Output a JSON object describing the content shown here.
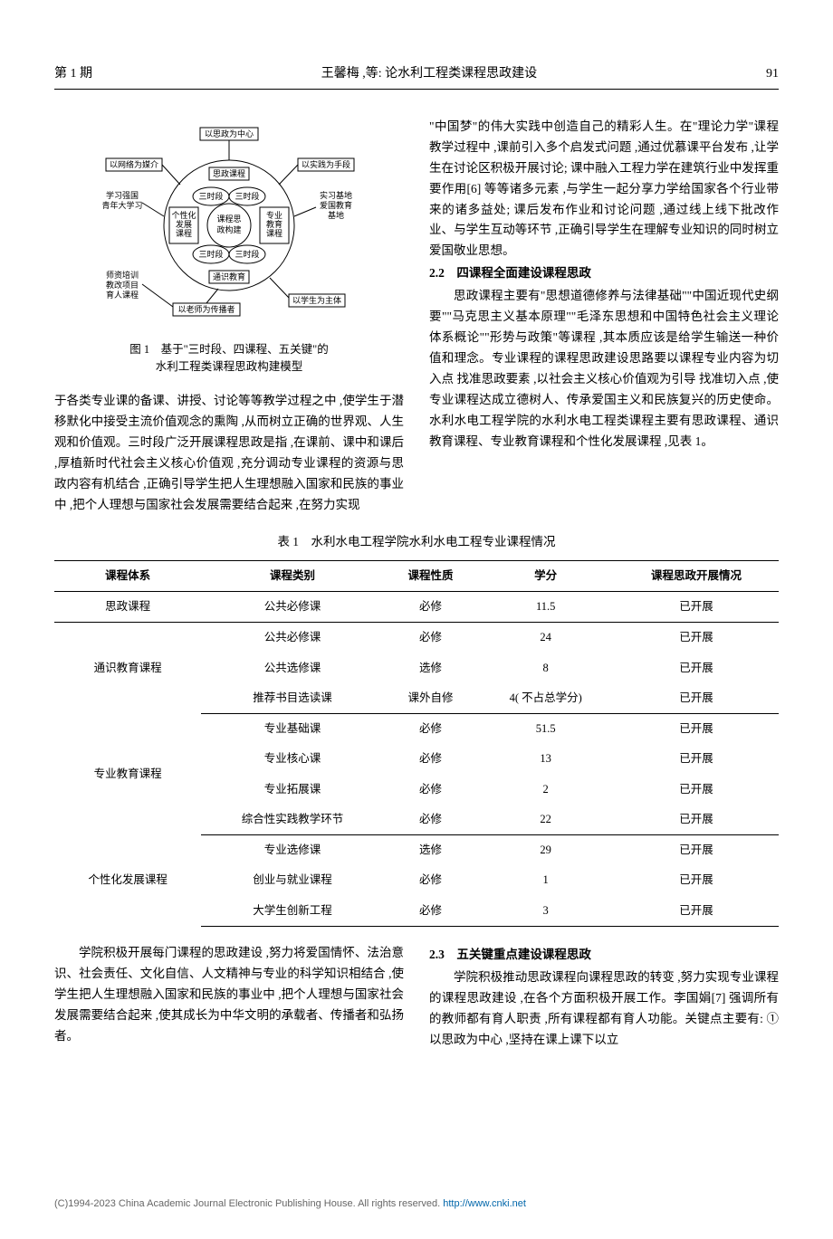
{
  "header": {
    "issue": "第 1 期",
    "title": "王馨梅 ,等: 论水利工程类课程思政建设",
    "page": "91"
  },
  "figure": {
    "center_label": "课程思\n政构建",
    "inner_nodes_top": [
      "三时段",
      "三时段"
    ],
    "inner_nodes_bottom": [
      "三时段",
      "三时段"
    ],
    "mid_left": "个性化\n发展\n课程",
    "mid_right": "专业\n教育\n课程",
    "mid_top": "思政课程",
    "mid_bottom": "通识教育",
    "outer_top": "以思政为中心",
    "outer_right_top": "以实践为手段",
    "outer_right_bottom": "以学生为主体",
    "outer_bottom": "以老师为传播者",
    "outer_left_bottom": "",
    "outer_left_top": "以网络为媒介",
    "side_left_top": "学习强国\n青年大学习",
    "side_left_bottom": "师资培训\n教改项目\n育人课程",
    "side_right_top": "实习基地\n爱国教育\n基地",
    "side_right_bottom": "",
    "caption_line1": "图 1　基于\"三时段、四课程、五关键\"的",
    "caption_line2": "水利工程类课程思政构建模型"
  },
  "col1_p1": "于各类专业课的备课、讲授、讨论等等教学过程之中 ,使学生于潜移默化中接受主流价值观念的熏陶 ,从而树立正确的世界观、人生观和价值观。三时段广泛开展课程思政是指 ,在课前、课中和课后 ,厚植新时代社会主义核心价值观 ,充分调动专业课程的资源与思政内容有机结合 ,正确引导学生把人生理想融入国家和民族的事业中 ,把个人理想与国家社会发展需要结合起来 ,在努力实现",
  "col2_p1": "\"中国梦\"的伟大实践中创造自己的精彩人生。在\"理论力学\"课程教学过程中 ,课前引入多个启发式问题 ,通过优慕课平台发布 ,让学生在讨论区积极开展讨论; 课中融入工程力学在建筑行业中发挥重要作用[6] 等等诸多元素 ,与学生一起分享力学给国家各个行业带来的诸多益处; 课后发布作业和讨论问题 ,通过线上线下批改作业、与学生互动等环节 ,正确引导学生在理解专业知识的同时树立爱国敬业思想。",
  "section_22_title": "2.2　四课程全面建设课程思政",
  "col2_p2": "思政课程主要有\"思想道德修养与法律基础\"\"中国近现代史纲要\"\"马克思主义基本原理\"\"毛泽东思想和中国特色社会主义理论体系概论\"\"形势与政策\"等课程 ,其本质应该是给学生输送一种价值和理念。专业课程的课程思政建设思路要以课程专业内容为切入点 找准思政要素 ,以社会主义核心价值观为引导 找准切入点 ,使专业课程达成立德树人、传承爱国主义和民族复兴的历史使命。水利水电工程学院的水利水电工程类课程主要有思政课程、通识教育课程、专业教育课程和个性化发展课程 ,见表 1。",
  "table": {
    "caption": "表 1　水利水电工程学院水利水电工程专业课程情况",
    "columns": [
      "课程体系",
      "课程类别",
      "课程性质",
      "学分",
      "课程思政开展情况"
    ],
    "groups": [
      {
        "system": "思政课程",
        "rowspan": 1,
        "rows": [
          {
            "type": "公共必修课",
            "nature": "必修",
            "credit": "11.5",
            "status": "已开展"
          }
        ]
      },
      {
        "system": "通识教育课程",
        "rowspan": 3,
        "rows": [
          {
            "type": "公共必修课",
            "nature": "必修",
            "credit": "24",
            "status": "已开展"
          },
          {
            "type": "公共选修课",
            "nature": "选修",
            "credit": "8",
            "status": "已开展"
          },
          {
            "type": "推荐书目选读课",
            "nature": "课外自修",
            "credit": "4( 不占总学分)",
            "status": "已开展"
          }
        ]
      },
      {
        "system": "专业教育课程",
        "rowspan": 4,
        "rows": [
          {
            "type": "专业基础课",
            "nature": "必修",
            "credit": "51.5",
            "status": "已开展"
          },
          {
            "type": "专业核心课",
            "nature": "必修",
            "credit": "13",
            "status": "已开展"
          },
          {
            "type": "专业拓展课",
            "nature": "必修",
            "credit": "2",
            "status": "已开展"
          },
          {
            "type": "综合性实践教学环节",
            "nature": "必修",
            "credit": "22",
            "status": "已开展"
          }
        ]
      },
      {
        "system": "个性化发展课程",
        "rowspan": 3,
        "rows": [
          {
            "type": "专业选修课",
            "nature": "选修",
            "credit": "29",
            "status": "已开展"
          },
          {
            "type": "创业与就业课程",
            "nature": "必修",
            "credit": "1",
            "status": "已开展"
          },
          {
            "type": "大学生创新工程",
            "nature": "必修",
            "credit": "3",
            "status": "已开展"
          }
        ]
      }
    ]
  },
  "bottom_col1": "学院积极开展每门课程的思政建设 ,努力将爱国情怀、法治意识、社会责任、文化自信、人文精神与专业的科学知识相结合 ,使学生把人生理想融入国家和民族的事业中 ,把个人理想与国家社会发展需要结合起来 ,使其成长为中华文明的承载者、传播者和弘扬者。",
  "section_23_title": "2.3　五关键重点建设课程思政",
  "bottom_col2": "学院积极推动思政课程向课程思政的转变 ,努力实现专业课程的课程思政建设 ,在各个方面积极开展工作。李国娟[7] 强调所有的教师都有育人职责 ,所有课程都有育人功能。关键点主要有: ①以思政为中心 ,坚持在课上课下以立",
  "footer": {
    "text": "(C)1994-2023 China Academic Journal Electronic Publishing House. All rights reserved.   ",
    "link": "http://www.cnki.net"
  },
  "colors": {
    "text": "#000000",
    "footer_text": "#666666",
    "footer_link": "#0066aa",
    "rule": "#000000"
  }
}
